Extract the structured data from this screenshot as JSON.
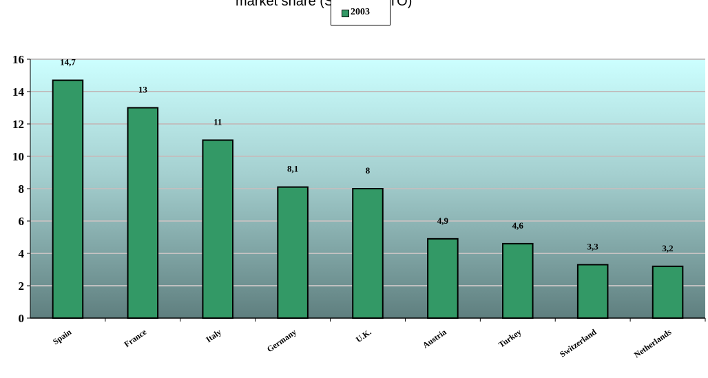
{
  "chart_data": {
    "type": "bar",
    "title": "market share (Source: WTO)",
    "categories": [
      "Spain",
      "France",
      "Italy",
      "Germany",
      "U.K.",
      "Austria",
      "Turkey",
      "Switzerland",
      "Netherlands"
    ],
    "series": [
      {
        "name": "2003",
        "values": [
          14.7,
          13,
          11,
          8.1,
          8,
          4.9,
          4.6,
          3.3,
          3.2
        ]
      }
    ],
    "data_labels": [
      "14,7",
      "13",
      "11",
      "8,1",
      "8",
      "4,9",
      "4,6",
      "3,3",
      "3,2"
    ],
    "ylim": [
      0,
      16
    ],
    "yticks": [
      0,
      2,
      4,
      6,
      8,
      10,
      12,
      14,
      16
    ],
    "xlabel": "",
    "ylabel": "",
    "grid": true,
    "legend_position": "top",
    "bar_color": "#339966",
    "plot_background": "gradient from #ccffff (top) to #5f7f7f (bottom)"
  }
}
